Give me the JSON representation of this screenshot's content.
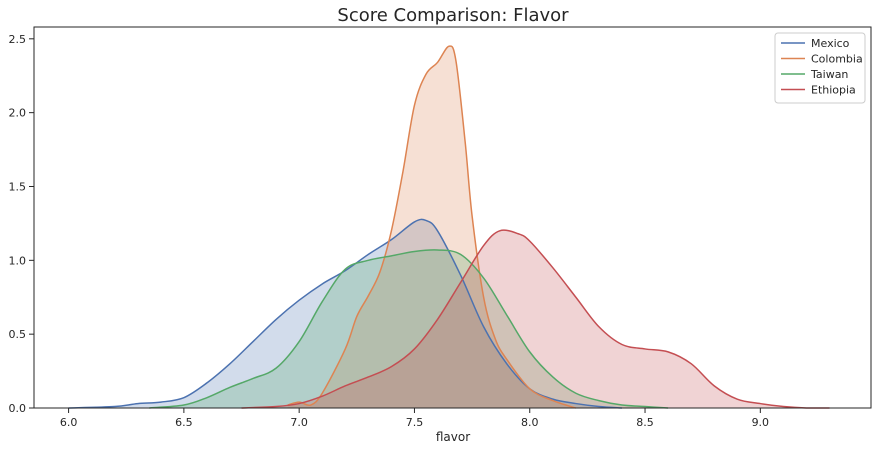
{
  "chart_data": {
    "type": "area",
    "title": "Score Comparison: Flavor",
    "xlabel": "flavor",
    "ylabel": "",
    "xlim": [
      5.85,
      9.48
    ],
    "ylim": [
      0,
      2.58
    ],
    "xticks": [
      6.0,
      6.5,
      7.0,
      7.5,
      8.0,
      8.5,
      9.0
    ],
    "xtick_labels": [
      "6.0",
      "6.5",
      "7.0",
      "7.5",
      "8.0",
      "8.5",
      "9.0"
    ],
    "yticks": [
      0.0,
      0.5,
      1.0,
      1.5,
      2.0,
      2.5
    ],
    "ytick_labels": [
      "0.0",
      "0.5",
      "1.0",
      "1.5",
      "2.0",
      "2.5"
    ],
    "grid": false,
    "legend_position": "top-right",
    "series": [
      {
        "name": "Mexico",
        "color": "#4c72b0",
        "x": [
          6.0,
          6.2,
          6.3,
          6.4,
          6.5,
          6.6,
          6.7,
          6.8,
          6.9,
          7.0,
          7.1,
          7.2,
          7.3,
          7.4,
          7.5,
          7.55,
          7.6,
          7.7,
          7.8,
          7.9,
          8.0,
          8.1,
          8.2,
          8.3,
          8.4
        ],
        "values": [
          0.0,
          0.01,
          0.03,
          0.04,
          0.07,
          0.17,
          0.3,
          0.45,
          0.6,
          0.73,
          0.84,
          0.93,
          1.04,
          1.14,
          1.26,
          1.27,
          1.2,
          0.9,
          0.55,
          0.3,
          0.13,
          0.06,
          0.03,
          0.01,
          0.0
        ]
      },
      {
        "name": "Colombia",
        "color": "#dd8452",
        "x": [
          6.95,
          7.0,
          7.05,
          7.1,
          7.2,
          7.25,
          7.3,
          7.35,
          7.4,
          7.45,
          7.5,
          7.55,
          7.6,
          7.65,
          7.68,
          7.72,
          7.75,
          7.8,
          7.85,
          7.9,
          8.0,
          8.1,
          8.2
        ],
        "values": [
          0.02,
          0.04,
          0.02,
          0.1,
          0.4,
          0.62,
          0.76,
          0.92,
          1.2,
          1.6,
          2.05,
          2.26,
          2.34,
          2.45,
          2.35,
          1.8,
          1.3,
          0.75,
          0.47,
          0.33,
          0.13,
          0.05,
          0.0
        ]
      },
      {
        "name": "Taiwan",
        "color": "#55a868",
        "x": [
          6.35,
          6.5,
          6.6,
          6.7,
          6.8,
          6.9,
          7.0,
          7.1,
          7.2,
          7.3,
          7.4,
          7.5,
          7.6,
          7.7,
          7.8,
          7.9,
          8.0,
          8.1,
          8.2,
          8.3,
          8.4,
          8.5,
          8.6
        ],
        "values": [
          0.0,
          0.02,
          0.07,
          0.14,
          0.2,
          0.27,
          0.45,
          0.72,
          0.94,
          1.0,
          1.03,
          1.06,
          1.07,
          1.04,
          0.88,
          0.63,
          0.38,
          0.21,
          0.1,
          0.05,
          0.02,
          0.01,
          0.0
        ]
      },
      {
        "name": "Ethiopia",
        "color": "#c44e52",
        "x": [
          6.75,
          6.9,
          7.0,
          7.1,
          7.2,
          7.3,
          7.4,
          7.5,
          7.6,
          7.7,
          7.8,
          7.87,
          7.95,
          8.0,
          8.1,
          8.2,
          8.3,
          8.4,
          8.5,
          8.6,
          8.7,
          8.8,
          8.9,
          9.0,
          9.1,
          9.2,
          9.3
        ],
        "values": [
          0.0,
          0.01,
          0.03,
          0.08,
          0.15,
          0.21,
          0.28,
          0.4,
          0.6,
          0.85,
          1.1,
          1.2,
          1.18,
          1.13,
          0.95,
          0.75,
          0.55,
          0.43,
          0.4,
          0.38,
          0.3,
          0.15,
          0.06,
          0.03,
          0.01,
          0.0,
          0.0
        ]
      }
    ]
  }
}
